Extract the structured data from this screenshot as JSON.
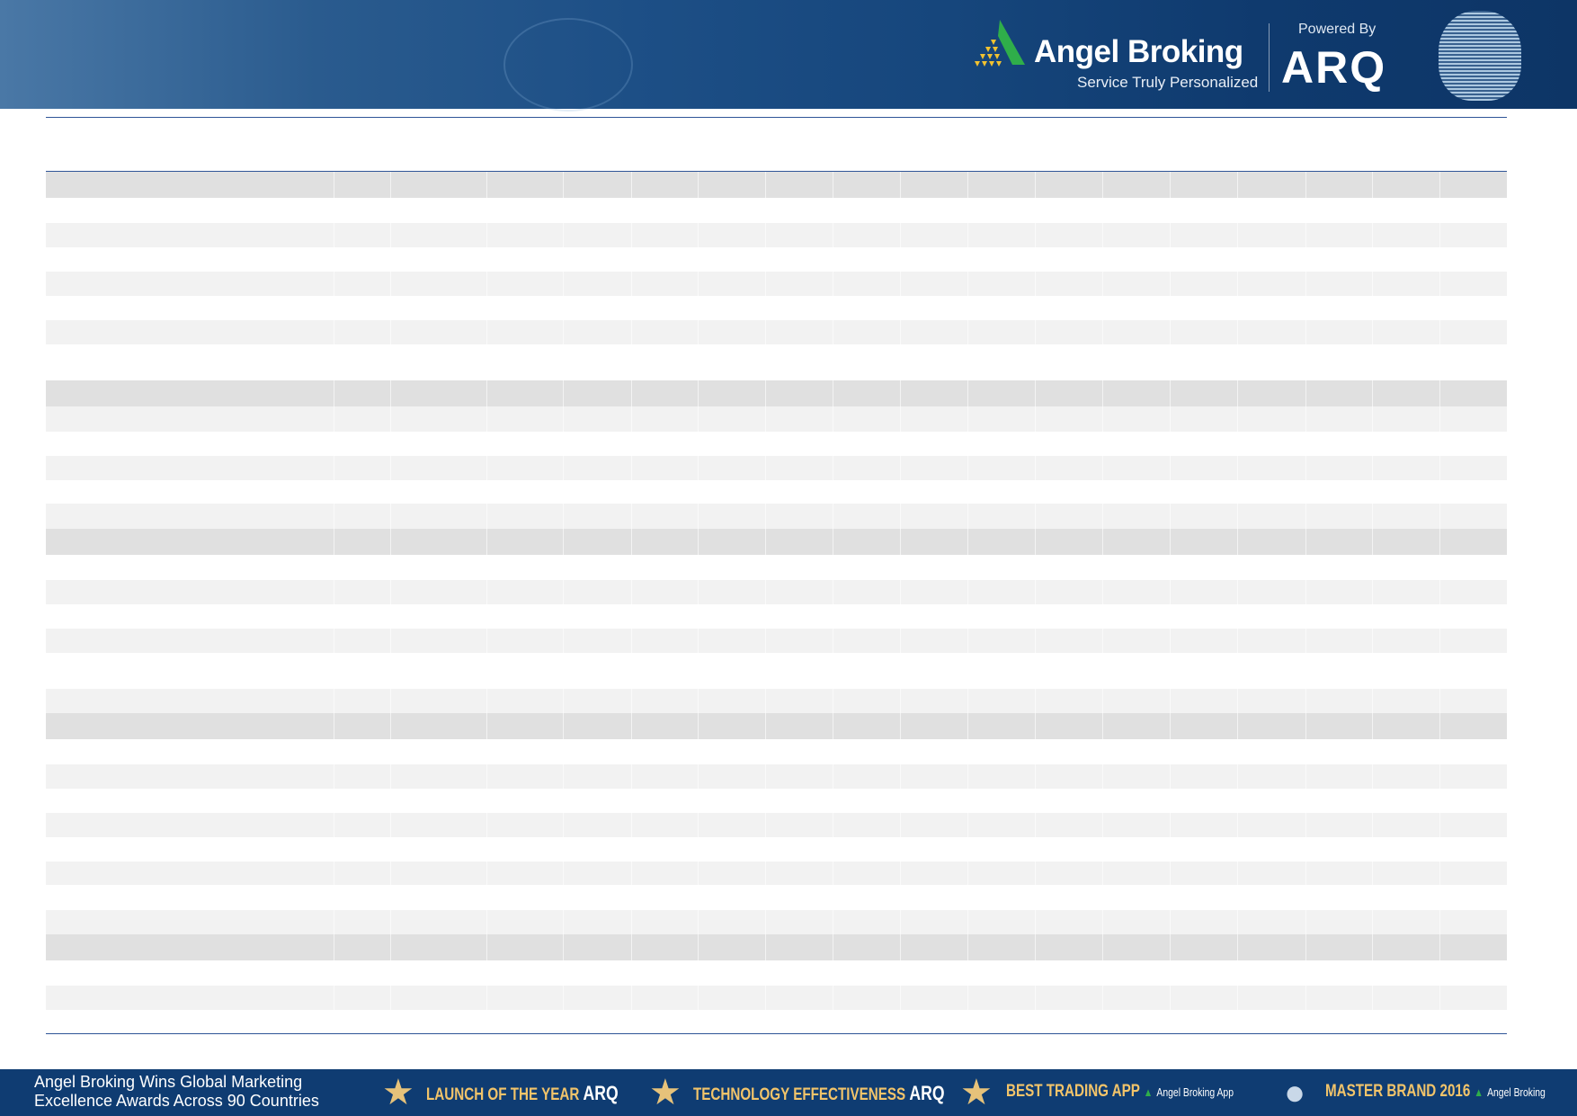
{
  "banner": {
    "brand": "Angel Broking",
    "tagline": "Service Truly Personalized",
    "powered_by": "Powered By",
    "product": "ARQ"
  },
  "footer": {
    "headline_line1": "Angel Broking Wins Global Marketing",
    "headline_line2": "Excellence Awards Across 90 Countries",
    "awards": [
      {
        "title": "LAUNCH OF THE YEAR",
        "brand": "ARQ",
        "sub": ""
      },
      {
        "title": "TECHNOLOGY EFFECTIVENESS",
        "brand": "ARQ",
        "sub": ""
      },
      {
        "title": "BEST TRADING APP",
        "brand": "",
        "sub": "Angel Broking App"
      },
      {
        "title": "MASTER BRAND 2016",
        "brand": "",
        "sub": "Angel Broking"
      }
    ]
  },
  "colors": {
    "banner": "#16467c",
    "rule": "#2f5597",
    "row_dark": "#e0e0e0",
    "row_light": "#f2f2f2",
    "footer": "#0f3c72",
    "award_gold": "#f2c46a"
  }
}
